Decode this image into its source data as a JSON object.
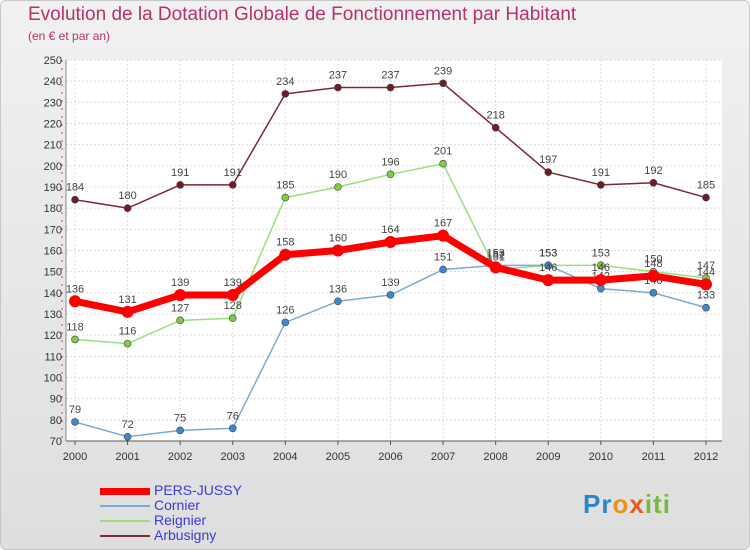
{
  "chart_data": {
    "type": "line",
    "title": "Evolution de la Dotation Globale de Fonctionnement par Habitant",
    "subtitle": "(en € et par an)",
    "x": [
      "2000",
      "2001",
      "2002",
      "2003",
      "2004",
      "2005",
      "2006",
      "2007",
      "2008",
      "2009",
      "2010",
      "2011",
      "2012"
    ],
    "yticks": [
      70,
      80,
      90,
      100,
      110,
      120,
      130,
      140,
      150,
      160,
      170,
      180,
      190,
      200,
      210,
      220,
      230,
      240,
      250
    ],
    "ylim": [
      70,
      250
    ],
    "grid": true,
    "legend_position": "bottom-left",
    "series": [
      {
        "name": "Arbusigny",
        "color": "#7b2a36",
        "point_color": "#6e1c28",
        "values": [
          184,
          180,
          191,
          191,
          234,
          237,
          237,
          239,
          218,
          197,
          191,
          192,
          185
        ]
      },
      {
        "name": "Reignier",
        "color": "#99e07c",
        "point_color": "#7ccc44",
        "values": [
          118,
          116,
          127,
          128,
          185,
          190,
          196,
          201,
          151,
          153,
          153,
          150,
          147
        ]
      },
      {
        "name": "Cornier",
        "color": "#7aaad6",
        "point_color": "#3f88cc",
        "values": [
          79,
          72,
          75,
          76,
          126,
          136,
          139,
          151,
          153,
          153,
          142,
          140,
          133
        ]
      },
      {
        "name": "PERS-JUSSY",
        "color": "#ff0000",
        "point_color": "#ff0000",
        "values": [
          136,
          131,
          139,
          139,
          158,
          160,
          164,
          167,
          152,
          146,
          146,
          148,
          144
        ]
      }
    ]
  },
  "legend": {
    "items": [
      {
        "label": "PERS-JUSSY",
        "color": "#ff0000"
      },
      {
        "label": "Cornier",
        "color": "#7aaad6"
      },
      {
        "label": "Reignier",
        "color": "#99e07c"
      },
      {
        "label": "Arbusigny",
        "color": "#7b2a36"
      }
    ]
  },
  "logo": {
    "p1": "Pr",
    "p2": "o",
    "p3": "x",
    "p4": "iti"
  }
}
